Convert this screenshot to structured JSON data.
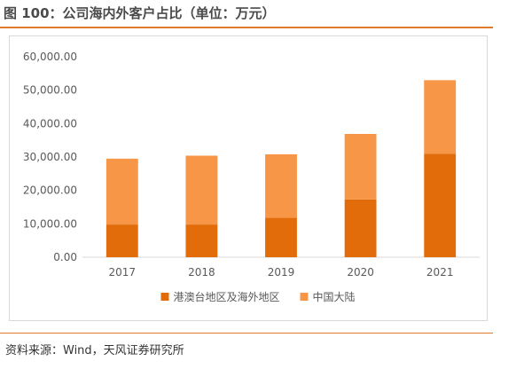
{
  "title": "图 100：公司海内外客户占比（单位：万元）",
  "source": "资料来源：Wind，天风证券研究所",
  "colors": {
    "series1": "#e36c0a",
    "series2": "#f79646",
    "rule": "#e07a2b",
    "axis": "#d9d9d9"
  },
  "chart_data": {
    "type": "bar",
    "stacked": true,
    "title": "",
    "xlabel": "",
    "ylabel": "",
    "categories": [
      "2017",
      "2018",
      "2019",
      "2020",
      "2021"
    ],
    "series": [
      {
        "name": "港澳台地区及海外地区",
        "values": [
          9800,
          9800,
          11800,
          17300,
          31000
        ]
      },
      {
        "name": "中国大陆",
        "values": [
          19700,
          20600,
          19000,
          19600,
          22000
        ]
      }
    ],
    "ylim": [
      0,
      60000
    ],
    "yticks": [
      "0.00",
      "10,000.00",
      "20,000.00",
      "30,000.00",
      "40,000.00",
      "50,000.00",
      "60,000.00"
    ],
    "grid": false,
    "legend": "bottom"
  }
}
